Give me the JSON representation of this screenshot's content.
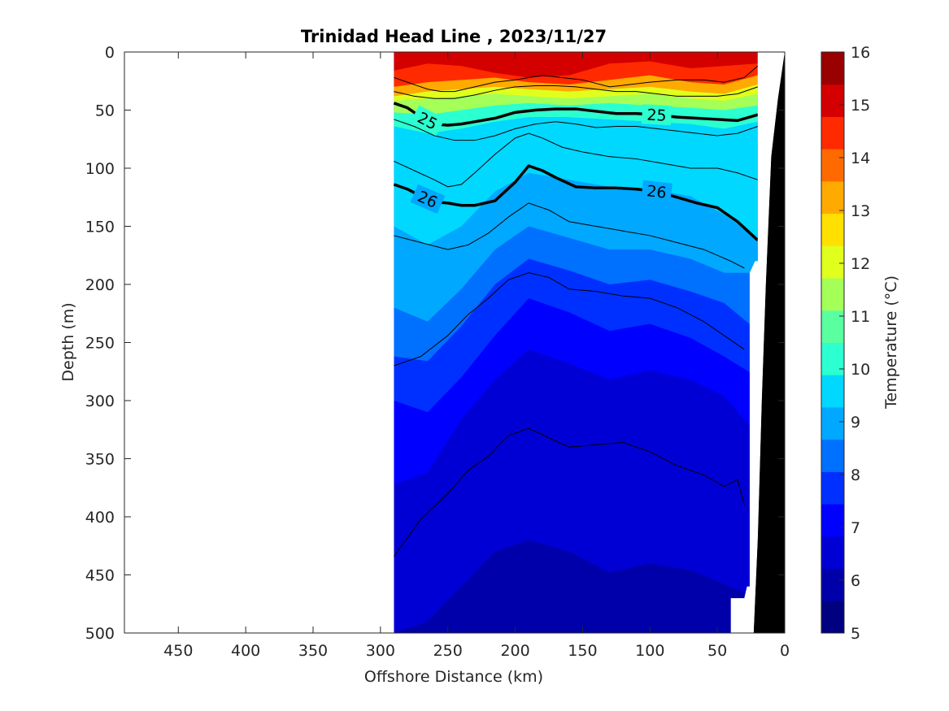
{
  "chart_data": {
    "type": "contour",
    "title": "Trinidad Head Line , 2023/11/27",
    "xlabel": "Offshore Distance (km)",
    "ylabel": "Depth (m)",
    "colorbar_label": "Temperature (°C)",
    "xlim": [
      490,
      0
    ],
    "ylim": [
      500,
      0
    ],
    "x_ticks": [
      450,
      400,
      350,
      300,
      250,
      200,
      150,
      100,
      50,
      0
    ],
    "y_ticks": [
      0,
      50,
      100,
      150,
      200,
      250,
      300,
      350,
      400,
      450,
      500
    ],
    "colorbar_ticks": [
      5,
      6,
      7,
      8,
      9,
      10,
      11,
      12,
      13,
      14,
      15,
      16
    ],
    "colorbar_range": [
      5,
      16
    ],
    "colormap": [
      "#000080",
      "#0000aa",
      "#0000d4",
      "#0000ff",
      "#0030ff",
      "#0070ff",
      "#00a8ff",
      "#00d8ff",
      "#2cffd0",
      "#5affa0",
      "#a4ff58",
      "#e0ff1c",
      "#ffe000",
      "#ffaa00",
      "#ff6a00",
      "#ff2a00",
      "#d40000",
      "#990000"
    ],
    "data_extent_km": [
      290,
      20
    ],
    "isotherms": [
      {
        "temp": 15,
        "depth": [
          16,
          10,
          12,
          18,
          22,
          20,
          10,
          8,
          14,
          12,
          10
        ]
      },
      {
        "temp": 14,
        "depth": [
          30,
          26,
          24,
          22,
          26,
          28,
          24,
          20,
          26,
          28,
          20
        ]
      },
      {
        "temp": 13,
        "depth": [
          38,
          34,
          32,
          30,
          32,
          34,
          32,
          30,
          34,
          36,
          28
        ]
      },
      {
        "temp": 12,
        "depth": [
          42,
          40,
          38,
          36,
          38,
          40,
          38,
          36,
          40,
          42,
          36
        ]
      },
      {
        "temp": 11,
        "depth": [
          52,
          54,
          50,
          46,
          44,
          46,
          44,
          46,
          48,
          50,
          46
        ]
      },
      {
        "temp": 10,
        "depth": [
          64,
          70,
          66,
          60,
          56,
          56,
          58,
          60,
          62,
          66,
          60
        ]
      },
      {
        "temp": 9.5,
        "depth": [
          84,
          96,
          100,
          88,
          74,
          72,
          76,
          80,
          82,
          86,
          80
        ]
      },
      {
        "temp": 9,
        "depth": [
          150,
          166,
          150,
          120,
          104,
          110,
          116,
          118,
          124,
          140,
          160
        ]
      },
      {
        "temp": 8.5,
        "depth": [
          220,
          232,
          204,
          170,
          150,
          160,
          170,
          170,
          178,
          190,
          190
        ]
      },
      {
        "temp": 8,
        "depth": [
          262,
          266,
          236,
          200,
          178,
          188,
          200,
          196,
          206,
          216,
          240
        ]
      },
      {
        "temp": 7.5,
        "depth": [
          300,
          310,
          280,
          244,
          212,
          224,
          240,
          234,
          246,
          262,
          280
        ]
      },
      {
        "temp": 7,
        "depth": [
          372,
          362,
          316,
          282,
          256,
          268,
          282,
          274,
          282,
          296,
          330
        ]
      },
      {
        "temp": 6.5,
        "depth": [
          440,
          420,
          390,
          366,
          350,
          356,
          368,
          358,
          368,
          380,
          400
        ]
      },
      {
        "temp": 6,
        "depth": [
          500,
          490,
          460,
          430,
          420,
          430,
          448,
          440,
          446,
          458,
          470
        ]
      },
      {
        "temp": 5.5,
        "depth": [
          550,
          550,
          540,
          520,
          500,
          520,
          540,
          530,
          540,
          550,
          550
        ]
      }
    ],
    "isotherm_x_km": [
      290,
      265,
      240,
      215,
      190,
      160,
      130,
      100,
      70,
      45,
      20
    ],
    "sigma_contours": [
      {
        "label": "25",
        "x_km": [
          290,
          280,
          270,
          260,
          250,
          240,
          230,
          215,
          200,
          185,
          170,
          155,
          140,
          125,
          110,
          95,
          80,
          65,
          50,
          35,
          20
        ],
        "depth": [
          44,
          48,
          56,
          62,
          63,
          62,
          60,
          57,
          52,
          50,
          49,
          49,
          51,
          53,
          53,
          54,
          56,
          57,
          58,
          59,
          54
        ]
      },
      {
        "label": "26",
        "x_km": [
          290,
          280,
          270,
          260,
          250,
          240,
          230,
          215,
          200,
          190,
          180,
          170,
          155,
          140,
          125,
          110,
          95,
          80,
          65,
          50,
          35,
          20
        ],
        "depth": [
          114,
          118,
          124,
          129,
          130,
          132,
          132,
          128,
          112,
          98,
          102,
          108,
          116,
          117,
          117,
          118,
          120,
          125,
          130,
          134,
          146,
          162
        ]
      }
    ],
    "thin_contours": [
      {
        "x_km": [
          290,
          275,
          265,
          255,
          245,
          230,
          215,
          200,
          190,
          180,
          165,
          150,
          130,
          115,
          100,
          80,
          60,
          45,
          30,
          20
        ],
        "depth": [
          22,
          28,
          32,
          34,
          34,
          30,
          26,
          24,
          22,
          20,
          22,
          24,
          30,
          28,
          26,
          24,
          24,
          26,
          22,
          12
        ]
      },
      {
        "x_km": [
          290,
          275,
          260,
          245,
          230,
          215,
          200,
          185,
          170,
          155,
          140,
          125,
          110,
          95,
          80,
          65,
          50,
          35,
          20
        ],
        "depth": [
          34,
          38,
          40,
          40,
          37,
          33,
          30,
          29,
          29,
          30,
          32,
          34,
          34,
          36,
          38,
          38,
          38,
          36,
          30
        ]
      },
      {
        "x_km": [
          290,
          275,
          260,
          245,
          230,
          215,
          200,
          185,
          170,
          155,
          140,
          125,
          110,
          95,
          80,
          65,
          50,
          35,
          20
        ],
        "depth": [
          58,
          64,
          72,
          76,
          76,
          72,
          66,
          62,
          60,
          62,
          65,
          64,
          64,
          66,
          68,
          70,
          72,
          70,
          64
        ]
      },
      {
        "x_km": [
          290,
          275,
          260,
          250,
          240,
          230,
          215,
          200,
          190,
          180,
          165,
          150,
          130,
          110,
          90,
          70,
          50,
          35,
          20
        ],
        "depth": [
          94,
          102,
          110,
          116,
          114,
          104,
          88,
          74,
          70,
          74,
          82,
          86,
          90,
          92,
          96,
          100,
          100,
          104,
          110
        ]
      },
      {
        "x_km": [
          290,
          270,
          250,
          235,
          220,
          205,
          190,
          175,
          160,
          140,
          120,
          100,
          80,
          60,
          40,
          30
        ],
        "depth": [
          158,
          164,
          170,
          166,
          156,
          142,
          130,
          136,
          146,
          150,
          154,
          158,
          164,
          170,
          180,
          186
        ]
      },
      {
        "x_km": [
          290,
          270,
          250,
          235,
          220,
          205,
          190,
          175,
          160,
          140,
          120,
          100,
          80,
          60,
          45,
          30
        ],
        "depth": [
          270,
          262,
          244,
          226,
          212,
          196,
          190,
          194,
          204,
          206,
          210,
          212,
          220,
          232,
          244,
          256
        ]
      },
      {
        "x_km": [
          290,
          270,
          250,
          235,
          220,
          205,
          190,
          175,
          160,
          140,
          120,
          100,
          80,
          60,
          45,
          35,
          30
        ],
        "depth": [
          434,
          402,
          380,
          360,
          348,
          330,
          324,
          332,
          340,
          338,
          336,
          344,
          356,
          364,
          374,
          368,
          390
        ]
      }
    ],
    "bottom_topography": {
      "x_km": [
        0,
        5,
        10,
        14,
        17,
        20,
        23,
        26,
        28,
        30,
        32,
        34,
        40,
        40,
        26,
        22,
        20,
        20,
        18,
        12,
        0
      ],
      "depth": [
        0,
        40,
        90,
        200,
        300,
        420,
        500,
        500,
        500,
        500,
        500,
        500,
        500,
        470,
        460,
        460,
        190,
        180,
        500,
        500,
        500
      ]
    }
  }
}
